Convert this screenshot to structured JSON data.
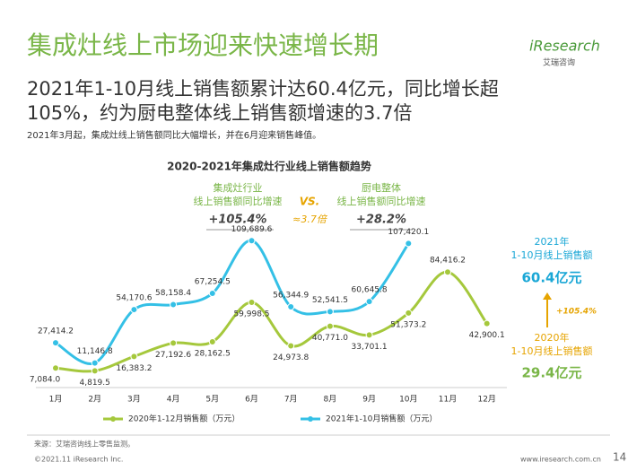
{
  "header": {
    "title": "集成灶线上市场迎来快速增长期",
    "logo": "iResearch",
    "logo_sub": "艾瑞咨询",
    "headline": [
      "2021年1-10月线上销售额累计达60.4亿元，同比增长超",
      "105%，约为厨电整体线上销售额增速的3.7倍"
    ],
    "note": "2021年3月起，集成灶线上销售额同比大幅增长，并在6月迎来销售峰值。"
  },
  "chart_data": {
    "type": "line",
    "title": "2020-2021年集成灶行业线上销售额趋势",
    "categories": [
      "1月",
      "2月",
      "3月",
      "4月",
      "5月",
      "6月",
      "7月",
      "8月",
      "9月",
      "10月",
      "11月",
      "12月"
    ],
    "series": [
      {
        "name": "2020年1-12月销售额（万元）",
        "color": "#a5c83c",
        "values": [
          7084.0,
          4819.5,
          16383.2,
          27192.6,
          28162.5,
          59998.5,
          24973.8,
          40771.0,
          33701.1,
          51373.2,
          84416.2,
          42900.1
        ],
        "value_labels": [
          "7,084.0",
          "4,819.5",
          "16,383.2",
          "27,192.6",
          "28,162.5",
          "59,998.5",
          "24,973.8",
          "40,771.0",
          "33,701.1",
          "51,373.2",
          "84,416.2",
          "42,900.1"
        ]
      },
      {
        "name": "2021年1-10月销售额（万元）",
        "color": "#34c0e6",
        "values": [
          27414.2,
          11146.8,
          54170.6,
          58158.4,
          67254.5,
          109689.6,
          56344.9,
          52541.5,
          60645.8,
          107420.1,
          null,
          null
        ],
        "value_labels": [
          "27,414.2",
          "11,146.8",
          "54,170.6",
          "58,158.4",
          "67,254.5",
          "109,689.6",
          "56,344.9",
          "52,541.5",
          "60,645.8",
          "107,420.1",
          null,
          null
        ]
      }
    ],
    "ylim": [
      0,
      120000
    ],
    "annotations": {
      "left_label": [
        "集成灶行业",
        "线上销售额同比增速"
      ],
      "left_value": "+105.4%",
      "vs": "VS.",
      "ratio": "≈3.7倍",
      "right_label": [
        "厨电整体",
        "线上销售额同比增速"
      ],
      "right_value": "+28.2%",
      "side_2021": [
        "2021年",
        "1-10月线上销售额"
      ],
      "side_2021_value": "60.4亿元",
      "side_growth": "+105.4%",
      "side_2020": [
        "2020年",
        "1-10月线上销售额"
      ],
      "side_2020_value": "29.4亿元"
    }
  },
  "footer": {
    "source": "来源：艾瑞咨询线上零售监测。",
    "copyright": "©2021.11 iResearch Inc.",
    "url": "www.iresearch.com.cn",
    "page": "14"
  }
}
